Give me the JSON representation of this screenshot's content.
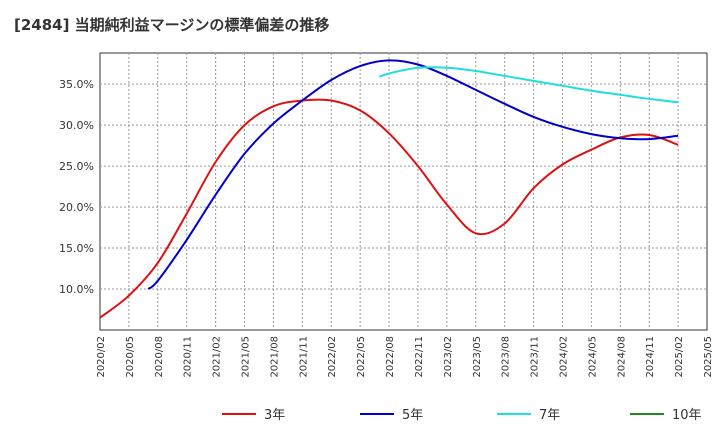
{
  "chart_data": {
    "type": "line",
    "title": "[2484]  当期純利益マージンの標準偏差の推移",
    "xlabel": "",
    "ylabel": "",
    "ylim": [
      5.0,
      38.8
    ],
    "yticks": [
      10.0,
      15.0,
      20.0,
      25.0,
      30.0,
      35.0
    ],
    "ytick_labels": [
      "10.0%",
      "15.0%",
      "20.0%",
      "25.0%",
      "30.0%",
      "35.0%"
    ],
    "x_start": "2020/02",
    "x_ticks": [
      "2020/02",
      "2020/05",
      "2020/08",
      "2020/11",
      "2021/02",
      "2021/05",
      "2021/08",
      "2021/11",
      "2022/02",
      "2022/05",
      "2022/08",
      "2022/11",
      "2023/02",
      "2023/05",
      "2023/08",
      "2023/11",
      "2024/02",
      "2024/05",
      "2024/08",
      "2024/11",
      "2025/02",
      "2025/05"
    ],
    "grid": true,
    "legend_position": "bottom",
    "series": [
      {
        "name": "3年",
        "color": "#dd1111",
        "points": [
          [
            "2020/02",
            6.5
          ],
          [
            "2020/05",
            9.2
          ],
          [
            "2020/08",
            13.2
          ],
          [
            "2020/11",
            19.2
          ],
          [
            "2021/02",
            25.5
          ],
          [
            "2021/05",
            30.0
          ],
          [
            "2021/08",
            32.3
          ],
          [
            "2021/11",
            33.0
          ],
          [
            "2022/02",
            33.0
          ],
          [
            "2022/05",
            31.8
          ],
          [
            "2022/08",
            29.0
          ],
          [
            "2022/11",
            25.0
          ],
          [
            "2023/02",
            20.3
          ],
          [
            "2023/05",
            16.8
          ],
          [
            "2023/08",
            18.0
          ],
          [
            "2023/11",
            22.3
          ],
          [
            "2024/02",
            25.2
          ],
          [
            "2024/05",
            27.0
          ],
          [
            "2024/08",
            28.5
          ],
          [
            "2024/11",
            28.8
          ],
          [
            "2025/02",
            27.6
          ]
        ]
      },
      {
        "name": "5年",
        "color": "#0000cc",
        "points": [
          [
            "2020/07",
            10.0
          ],
          [
            "2020/08",
            11.0
          ],
          [
            "2020/11",
            16.0
          ],
          [
            "2021/02",
            21.5
          ],
          [
            "2021/05",
            26.5
          ],
          [
            "2021/08",
            30.2
          ],
          [
            "2021/11",
            33.0
          ],
          [
            "2022/02",
            35.5
          ],
          [
            "2022/05",
            37.2
          ],
          [
            "2022/08",
            37.9
          ],
          [
            "2022/11",
            37.4
          ],
          [
            "2023/02",
            36.0
          ],
          [
            "2023/05",
            34.3
          ],
          [
            "2023/08",
            32.6
          ],
          [
            "2023/11",
            31.0
          ],
          [
            "2024/02",
            29.8
          ],
          [
            "2024/05",
            28.9
          ],
          [
            "2024/08",
            28.4
          ],
          [
            "2024/11",
            28.3
          ],
          [
            "2025/02",
            28.7
          ]
        ]
      },
      {
        "name": "7年",
        "color": "#22dddd",
        "points": [
          [
            "2022/07",
            35.9
          ],
          [
            "2022/08",
            36.3
          ],
          [
            "2022/11",
            37.0
          ],
          [
            "2023/02",
            37.0
          ],
          [
            "2023/05",
            36.6
          ],
          [
            "2023/08",
            36.0
          ],
          [
            "2023/11",
            35.4
          ],
          [
            "2024/02",
            34.8
          ],
          [
            "2024/05",
            34.2
          ],
          [
            "2024/08",
            33.7
          ],
          [
            "2024/11",
            33.2
          ],
          [
            "2025/02",
            32.8
          ]
        ]
      },
      {
        "name": "10年",
        "color": "#228822",
        "points": []
      }
    ]
  }
}
